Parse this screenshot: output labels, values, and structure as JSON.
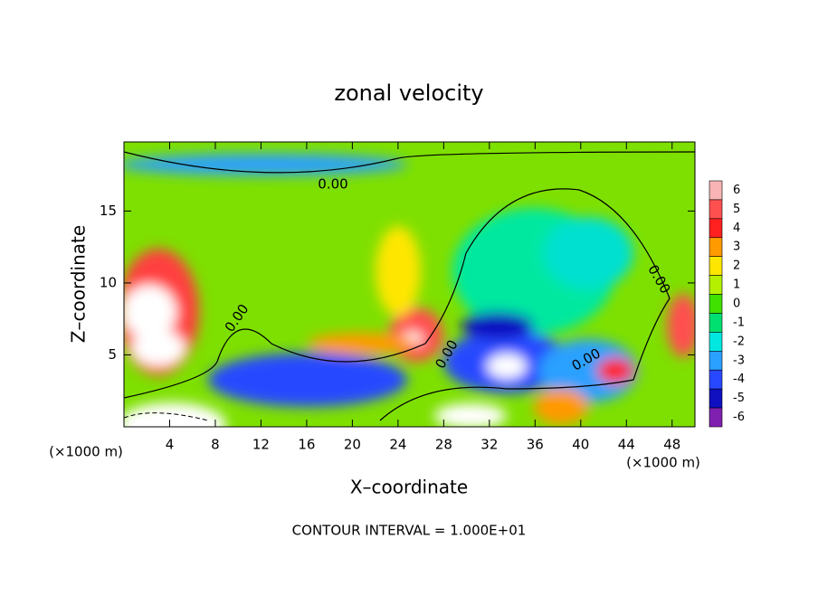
{
  "chart_data": {
    "type": "contour",
    "title": "zonal velocity",
    "x_label": "X–coordinate",
    "y_label": "Z–coordinate",
    "x_unit": "(×1000 m)",
    "y_unit": "(×1000 m)",
    "footer": "CONTOUR INTERVAL = 1.000E+01",
    "xlim": [
      0,
      50
    ],
    "xticks": [
      4,
      8,
      12,
      16,
      20,
      24,
      28,
      32,
      36,
      40,
      44,
      48
    ],
    "ylim": [
      0,
      19.8
    ],
    "yticks": [
      5,
      10,
      15
    ],
    "contour_labels": [
      "0.00",
      "0.00",
      "0.00",
      "0.00",
      "0.00"
    ],
    "colorbar": {
      "levels": [
        6,
        5,
        4,
        3,
        2,
        1,
        0,
        -1,
        -2,
        -3,
        -4,
        -5,
        -6
      ],
      "colors": [
        "#f8b4b4",
        "#ff5050",
        "#ff2020",
        "#ff9a00",
        "#ffe600",
        "#b4f000",
        "#40e000",
        "#00e070",
        "#00e8e0",
        "#2aa0ff",
        "#2848ff",
        "#1010c0",
        "#8020b0"
      ]
    }
  }
}
